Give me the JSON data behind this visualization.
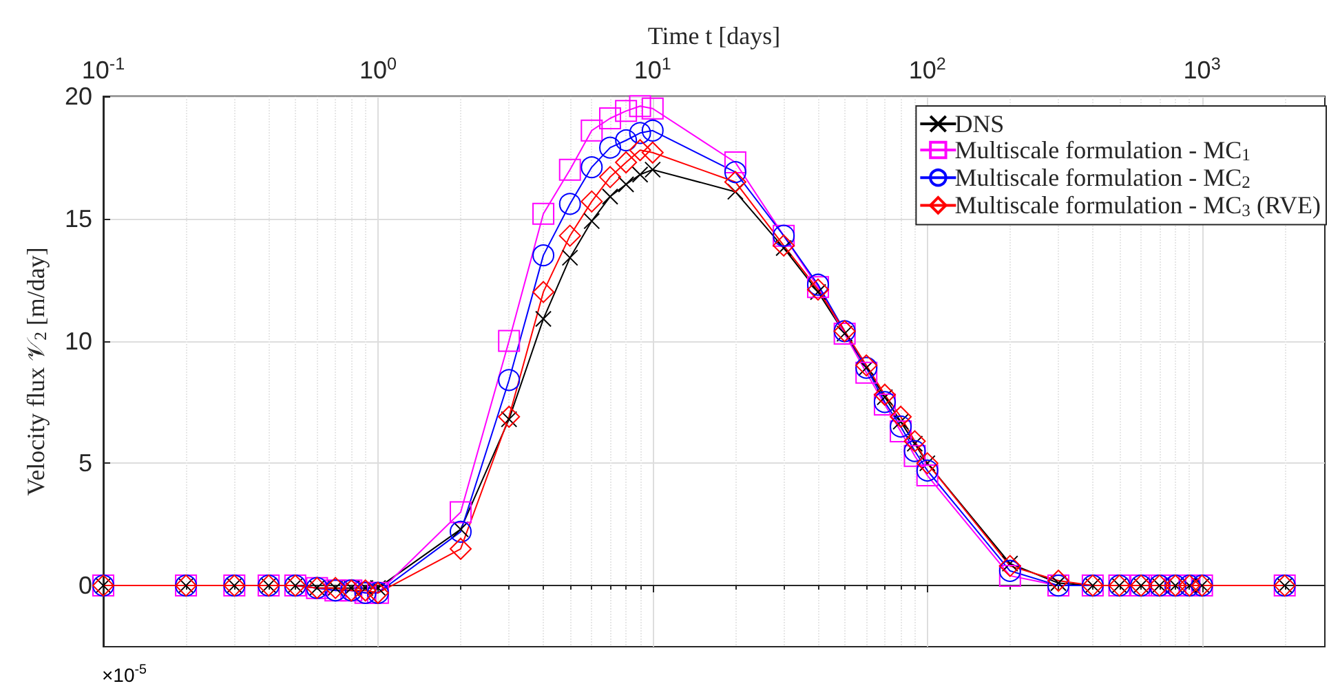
{
  "chart_data": {
    "type": "line",
    "xlabel": "Time t [days]",
    "ylabel": "Velocity flux 𝒱$_{2}$ [m/day]",
    "annotations": [
      "×10$^{-5}$"
    ],
    "x": [
      0.1,
      0.2,
      0.3,
      0.4,
      0.5,
      0.6,
      0.7,
      0.8,
      0.9,
      1,
      2,
      3,
      4,
      5,
      6,
      7,
      8,
      9,
      10,
      20,
      30,
      40,
      50,
      60,
      70,
      80,
      90,
      100,
      200,
      300,
      400,
      500,
      600,
      700,
      800,
      900,
      1000,
      2000
    ],
    "series": [
      {
        "name": "DNS",
        "color": "#000000",
        "marker": "cross",
        "values": [
          0,
          0,
          0,
          0,
          0,
          -0.1,
          -0.1,
          -0.1,
          -0.1,
          -0.1,
          2.3,
          6.8,
          10.9,
          13.4,
          14.9,
          15.9,
          16.4,
          16.8,
          17.0,
          16.1,
          13.8,
          12.0,
          10.3,
          8.9,
          7.7,
          6.7,
          5.8,
          5.0,
          0.9,
          0.1,
          0,
          0,
          0,
          0,
          0,
          0,
          0,
          0
        ]
      },
      {
        "name": "Multiscale formulation - MC$_{1}$",
        "color": "#ff00ff",
        "marker": "square",
        "values": [
          0,
          0,
          0,
          0,
          0,
          -0.1,
          -0.2,
          -0.2,
          -0.3,
          -0.3,
          3.0,
          10.0,
          15.2,
          17.0,
          18.6,
          19.1,
          19.4,
          19.6,
          19.5,
          17.3,
          14.3,
          12.2,
          10.3,
          8.7,
          7.4,
          6.3,
          5.3,
          4.5,
          0.4,
          0,
          0,
          0,
          0,
          0,
          0,
          0,
          0,
          0
        ]
      },
      {
        "name": "Multiscale formulation - MC$_{2}$",
        "color": "#0000ff",
        "marker": "circle",
        "values": [
          0,
          0,
          0,
          0,
          0,
          -0.1,
          -0.2,
          -0.2,
          -0.3,
          -0.3,
          2.2,
          8.4,
          13.5,
          15.6,
          17.1,
          17.9,
          18.2,
          18.5,
          18.6,
          16.9,
          14.3,
          12.3,
          10.4,
          8.9,
          7.5,
          6.5,
          5.5,
          4.7,
          0.6,
          0,
          0,
          0,
          0,
          0,
          0,
          0,
          0,
          0
        ]
      },
      {
        "name": "Multiscale formulation - MC$_{3}$ (RVE)",
        "color": "#ff0000",
        "marker": "diamond",
        "values": [
          0,
          0,
          0,
          0,
          0,
          -0.1,
          -0.1,
          -0.2,
          -0.2,
          -0.3,
          1.5,
          6.9,
          12.0,
          14.3,
          15.7,
          16.7,
          17.3,
          17.8,
          17.7,
          16.5,
          13.9,
          12.1,
          10.4,
          9.0,
          7.8,
          6.9,
          5.9,
          5.0,
          0.8,
          0.2,
          0,
          0,
          0,
          0,
          0,
          0,
          0,
          0
        ]
      }
    ],
    "log": "x",
    "xlim": [
      0.1,
      2800
    ],
    "xticks": [
      {
        "value": 0.1,
        "label": "10$^{-1}$"
      },
      {
        "value": 1,
        "label": "10$^{0}$"
      },
      {
        "value": 10,
        "label": "10$^{1}$"
      },
      {
        "value": 100,
        "label": "10$^{2}$"
      },
      {
        "value": 1000,
        "label": "10$^{3}$"
      }
    ],
    "ylim": [
      -2.5,
      20
    ],
    "yticks": [
      0,
      5,
      10,
      15,
      20
    ],
    "grid": true,
    "legend": "top right",
    "line_style": "solid"
  }
}
